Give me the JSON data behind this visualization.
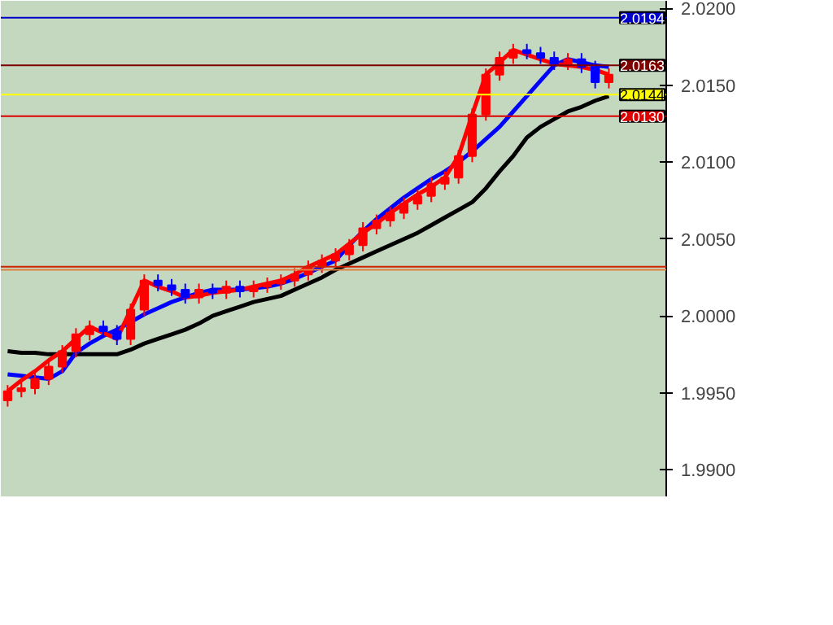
{
  "chart_data": {
    "type": "candlestick",
    "categories": [
      null,
      null,
      null,
      null,
      null,
      null,
      null,
      null,
      null,
      null,
      null,
      null,
      null,
      null,
      null,
      null,
      null,
      null,
      null,
      null,
      null,
      null,
      null,
      null,
      null,
      null,
      null,
      null,
      null,
      null,
      null,
      null,
      null,
      null,
      null,
      null,
      null,
      null,
      null,
      null,
      null,
      null,
      null,
      null,
      null
    ],
    "ohlc": [
      [
        1.9945,
        1.9955,
        1.9941,
        1.9951
      ],
      [
        1.9951,
        1.9957,
        1.9947,
        1.9953
      ],
      [
        1.9953,
        1.9963,
        1.9949,
        1.9959
      ],
      [
        1.9959,
        1.9971,
        1.9955,
        1.9967
      ],
      [
        1.9967,
        1.9981,
        1.9963,
        1.9977
      ],
      [
        1.9977,
        1.9992,
        1.9973,
        1.9988
      ],
      [
        1.9988,
        1.9997,
        1.9984,
        1.9993
      ],
      [
        1.9993,
        1.9997,
        1.9986,
        1.999
      ],
      [
        1.999,
        1.9994,
        1.9981,
        1.9985
      ],
      [
        1.9985,
        2.0008,
        1.9981,
        2.0004
      ],
      [
        2.0004,
        2.0027,
        2.0,
        2.0023
      ],
      [
        2.0023,
        2.0027,
        2.0016,
        2.002
      ],
      [
        2.002,
        2.0024,
        2.0013,
        2.0017
      ],
      [
        2.0017,
        2.0021,
        2.0008,
        2.0012
      ],
      [
        2.0012,
        2.0021,
        2.0008,
        2.0017
      ],
      [
        2.0017,
        2.0021,
        2.0011,
        2.0015
      ],
      [
        2.0015,
        2.0023,
        2.0011,
        2.0019
      ],
      [
        2.0019,
        2.0023,
        2.0012,
        2.0016
      ],
      [
        2.0016,
        2.0023,
        2.0012,
        2.0019
      ],
      [
        2.0019,
        2.0025,
        2.0015,
        2.0021
      ],
      [
        2.0021,
        2.0027,
        2.0017,
        2.0023
      ],
      [
        2.0023,
        2.0031,
        2.0019,
        2.0027
      ],
      [
        2.0027,
        2.0036,
        2.0023,
        2.0032
      ],
      [
        2.0032,
        2.004,
        2.0028,
        2.0036
      ],
      [
        2.0036,
        2.0044,
        2.0032,
        2.004
      ],
      [
        2.004,
        2.005,
        2.0036,
        2.0046
      ],
      [
        2.0046,
        2.0061,
        2.0042,
        2.0057
      ],
      [
        2.0057,
        2.0066,
        2.0053,
        2.0062
      ],
      [
        2.0062,
        2.0071,
        2.0058,
        2.0067
      ],
      [
        2.0067,
        2.0077,
        2.0063,
        2.0073
      ],
      [
        2.0073,
        2.0082,
        2.0069,
        2.0078
      ],
      [
        2.0078,
        2.009,
        2.0074,
        2.0086
      ],
      [
        2.0086,
        2.0094,
        2.0082,
        2.009
      ],
      [
        2.009,
        2.0108,
        2.0086,
        2.0104
      ],
      [
        2.0104,
        2.0135,
        2.01,
        2.0131
      ],
      [
        2.0131,
        2.0161,
        2.0127,
        2.0157
      ],
      [
        2.0157,
        2.0172,
        2.0153,
        2.0168
      ],
      [
        2.0168,
        2.0177,
        2.0164,
        2.0173
      ],
      [
        2.0173,
        2.0177,
        2.0167,
        2.0171
      ],
      [
        2.0171,
        2.0175,
        2.0164,
        2.0168
      ],
      [
        2.0168,
        2.0172,
        2.016,
        2.0164
      ],
      [
        2.0164,
        2.0171,
        2.016,
        2.0167
      ],
      [
        2.0167,
        2.0171,
        2.0158,
        2.0162
      ],
      [
        2.0162,
        2.0166,
        2.0148,
        2.0152
      ],
      [
        2.0152,
        2.0161,
        2.0148,
        2.0157
      ]
    ],
    "colors": [
      "#ff0000",
      "#ff0000",
      "#ff0000",
      "#ff0000",
      "#ff0000",
      "#ff0000",
      "#ff0000",
      "#0000ff",
      "#0000ff",
      "#ff0000",
      "#ff0000",
      "#0000ff",
      "#0000ff",
      "#0000ff",
      "#ff0000",
      "#0000ff",
      "#ff0000",
      "#0000ff",
      "#ff0000",
      "#ff0000",
      "#ff0000",
      "#ff0000",
      "#ff0000",
      "#ff0000",
      "#ff0000",
      "#ff0000",
      "#ff0000",
      "#ff0000",
      "#ff0000",
      "#ff0000",
      "#ff0000",
      "#ff0000",
      "#ff0000",
      "#ff0000",
      "#ff0000",
      "#ff0000",
      "#ff0000",
      "#ff0000",
      "#0000ff",
      "#0000ff",
      "#0000ff",
      "#ff0000",
      "#0000ff",
      "#0000ff",
      "#ff0000"
    ],
    "series": [
      {
        "type": "line",
        "color": "#000000",
        "values": [
          1.9977,
          1.9976,
          1.9976,
          1.9975,
          1.9975,
          1.9975,
          1.9975,
          1.9975,
          1.9975,
          1.9978,
          1.9982,
          1.9985,
          1.9988,
          1.9991,
          1.9995,
          2.0,
          2.0003,
          2.0006,
          2.0009,
          2.0011,
          2.0013,
          2.0017,
          2.0021,
          2.0025,
          2.003,
          2.0034,
          2.0038,
          2.0042,
          2.0046,
          2.005,
          2.0054,
          2.0059,
          2.0064,
          2.0069,
          2.0074,
          2.0083,
          2.0094,
          2.0104,
          2.0116,
          2.0123,
          2.0128,
          2.0133,
          2.0136,
          2.014,
          2.0143
        ]
      },
      {
        "type": "line",
        "color": "#0000ff",
        "values": [
          1.9962,
          1.9961,
          1.996,
          1.9959,
          1.9964,
          1.9976,
          1.9982,
          1.9987,
          1.9991,
          1.9996,
          2.0001,
          2.0005,
          2.0009,
          2.0012,
          2.0015,
          2.0017,
          2.0017,
          2.0017,
          2.0018,
          2.0019,
          2.0021,
          2.0024,
          2.0028,
          2.0032,
          2.0036,
          2.0046,
          2.0055,
          2.0063,
          2.007,
          2.0077,
          2.0083,
          2.0089,
          2.0094,
          2.01,
          2.0107,
          2.0115,
          2.0123,
          2.0133,
          2.0143,
          2.0153,
          2.0163,
          2.0167,
          2.0165,
          2.0163,
          2.0162
        ]
      },
      {
        "type": "line",
        "color": "#ff0000",
        "values": [
          1.9951,
          1.9958,
          1.9964,
          1.9971,
          1.9977,
          1.9985,
          1.9993,
          1.9989,
          1.9985,
          2.0004,
          2.0023,
          2.0019,
          2.0016,
          2.0012,
          2.0013,
          2.0015,
          2.0016,
          2.0017,
          2.0019,
          2.0021,
          2.0023,
          2.0027,
          2.0032,
          2.0036,
          2.004,
          2.0047,
          2.0054,
          2.006,
          2.0067,
          2.0073,
          2.0079,
          2.0084,
          2.009,
          2.0104,
          2.0131,
          2.0157,
          2.0165,
          2.0173,
          2.017,
          2.0167,
          2.0164,
          2.0163,
          2.0162,
          2.016,
          2.0157
        ]
      }
    ],
    "ylim": [
      1.9882,
      2.0205
    ],
    "yticks": [
      {
        "value": 1.99,
        "label": "1.9900"
      },
      {
        "value": 1.995,
        "label": "1.9950"
      },
      {
        "value": 2.0,
        "label": "2.0000"
      },
      {
        "value": 2.005,
        "label": "2.0050"
      },
      {
        "value": 2.01,
        "label": "2.0100"
      },
      {
        "value": 2.015,
        "label": "2.0150"
      },
      {
        "value": 2.02,
        "label": "2.0200"
      }
    ],
    "tick_labels": "y",
    "grid": false,
    "ref_lines": [
      {
        "axis": "y",
        "value": 2.0194,
        "label": "2.0194",
        "color": "#0000cc"
      },
      {
        "axis": "y",
        "value": 2.0163,
        "label": "2.0163",
        "color": "#800000"
      },
      {
        "axis": "y",
        "value": 2.0144,
        "label": "2.0144",
        "color": "#ffff00"
      },
      {
        "axis": "y",
        "value": 2.013,
        "label": "2.0130",
        "color": "#dd0000"
      },
      {
        "axis": "y",
        "value": 2.0032,
        "color": "#cc2200"
      },
      {
        "axis": "y",
        "value": 2.003,
        "color": "#e08040"
      }
    ]
  }
}
